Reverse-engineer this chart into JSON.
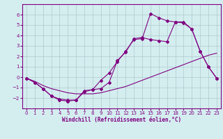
{
  "xlabel": "Windchill (Refroidissement éolien,°C)",
  "background_color": "#d4eef0",
  "grid_color": "#b0c8cc",
  "line_color": "#800080",
  "xlim": [
    -0.5,
    23.5
  ],
  "ylim": [
    -3,
    7
  ],
  "xticks": [
    0,
    1,
    2,
    3,
    4,
    5,
    6,
    7,
    8,
    9,
    10,
    11,
    12,
    13,
    14,
    15,
    16,
    17,
    18,
    19,
    20,
    21,
    22,
    23
  ],
  "yticks": [
    -2,
    -1,
    0,
    1,
    2,
    3,
    4,
    5,
    6
  ],
  "line1_x": [
    0,
    1,
    2,
    3,
    4,
    5,
    6,
    7,
    8,
    9,
    10,
    11,
    12,
    13,
    14,
    15,
    16,
    17,
    18,
    19,
    20,
    21,
    22,
    23
  ],
  "line1_y": [
    -0.1,
    -0.5,
    -1.1,
    -1.8,
    -2.1,
    -2.2,
    -2.2,
    -1.3,
    -1.2,
    -0.3,
    0.4,
    1.5,
    2.5,
    3.6,
    3.7,
    6.1,
    5.7,
    5.4,
    5.3,
    5.3,
    4.6,
    2.5,
    1.0,
    -0.1
  ],
  "line2_x": [
    0,
    1,
    2,
    3,
    4,
    5,
    6,
    7,
    8,
    9,
    10,
    11,
    12,
    13,
    14,
    15,
    16,
    17,
    18,
    19,
    20,
    21,
    22,
    23
  ],
  "line2_y": [
    -0.1,
    -0.5,
    -1.1,
    -1.8,
    -2.2,
    -2.3,
    -2.2,
    -1.4,
    -1.2,
    -1.1,
    -0.5,
    1.6,
    2.4,
    3.7,
    3.8,
    3.6,
    3.5,
    3.4,
    5.3,
    5.2,
    4.6,
    2.5,
    1.0,
    -0.1
  ],
  "line3_x": [
    0,
    1,
    2,
    3,
    4,
    5,
    6,
    7,
    8,
    9,
    10,
    11,
    12,
    13,
    14,
    15,
    16,
    17,
    18,
    19,
    20,
    21,
    22,
    23
  ],
  "line3_y": [
    -0.1,
    -0.4,
    -0.8,
    -1.1,
    -1.3,
    -1.5,
    -1.6,
    -1.6,
    -1.6,
    -1.5,
    -1.3,
    -1.1,
    -0.9,
    -0.6,
    -0.3,
    0.0,
    0.3,
    0.6,
    0.9,
    1.2,
    1.5,
    1.8,
    2.1,
    2.3
  ],
  "xlabel_fontsize": 5.5,
  "tick_labelsize": 5,
  "linewidth": 0.8,
  "markersize": 2.0
}
